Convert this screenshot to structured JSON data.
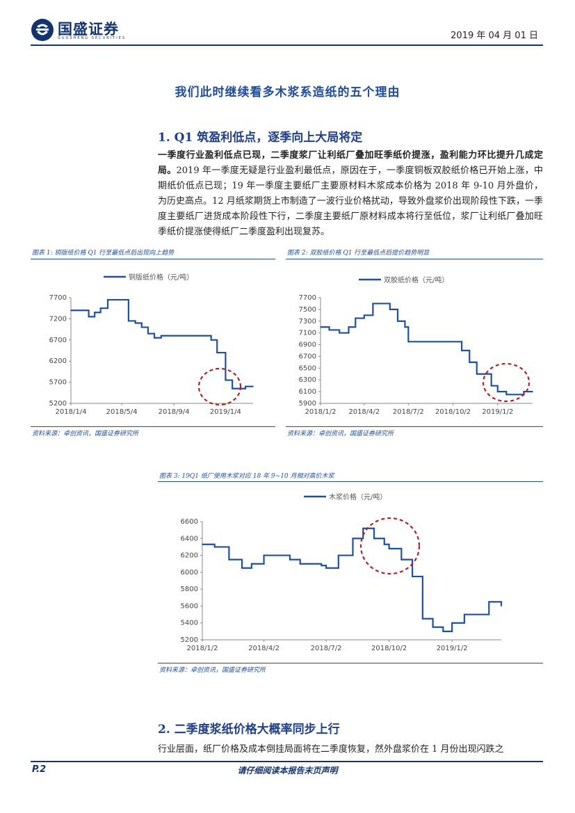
{
  "header": {
    "logo_text": "国盛证券",
    "logo_sub": "GUOSHENG SECURITIES",
    "date": "2019 年 04 月 01 日"
  },
  "main_title": "我们此时继续看多木浆系造纸的五个理由",
  "section1": {
    "title": "1. Q1 筑盈利低点，逐季向上大局将定",
    "bold_lead": "一季度行业盈利低点已现，二季度浆厂让利纸厂叠加旺季纸价提涨，盈利能力环比提升几成定局。",
    "body": "2019 年一季度无疑是行业盈利最低点，原因在于，一季度铜板双胶纸价格已开始上涨，中期纸价低点已现；19 年一季度主要纸厂主要原材料木浆成本价格为 2018 年 9-10 月外盘价，为历史高点。12 月纸浆期货上市制造了一波行业价格扰动，导致外盘浆价出现阶段性下跌，一季度主要纸厂进货成本阶段性下行，二季度主要纸厂原材料成本将行至低位，浆厂让利纸厂叠加旺季纸价提涨使得纸厂二季度盈利出现复苏。"
  },
  "figures": {
    "fig1": {
      "caption": "图表 1:  铜版纸价格 Q1 行至最低点后出现向上趋势",
      "source": "资料来源：卓创资讯，国盛证券研究所"
    },
    "fig2": {
      "caption": "图表 2:  双胶纸价格 Q1 行至最低点后提价趋势明显",
      "source": "资料来源：卓创资讯，国盛证券研究所"
    },
    "fig3": {
      "caption": "图表 3:  19Q1 纸厂使用木浆对应 18 年 9~10 月相对高价木浆",
      "source": "资料来源：卓创资讯，国盛证券研究所"
    }
  },
  "section2": {
    "title": "2. 二季度浆纸价格大概率同步上行",
    "body": "行业层面，纸厂价格及成本倒挂局面将在二季度恢复，然外盘浆价在 1 月份出现闪跌之"
  },
  "footer": {
    "page": "P.2",
    "disclaimer": "请仔细阅读本报告末页声明"
  },
  "colors": {
    "brand": "#14336e",
    "line": "#1f4fa0",
    "highlight_circle": "#b22222"
  },
  "chart_data": [
    {
      "type": "line",
      "series": [
        {
          "name": "铜版纸价格（元/吨）",
          "x": [
            "2018/1/4",
            "2018/2/1",
            "2018/2/15",
            "2018/3/1",
            "2018/3/15",
            "2018/4/1",
            "2018/4/15",
            "2018/5/4",
            "2018/5/20",
            "2018/6/5",
            "2018/6/20",
            "2018/7/5",
            "2018/7/20",
            "2018/8/5",
            "2018/8/20",
            "2018/9/4",
            "2018/9/20",
            "2018/10/5",
            "2018/10/20",
            "2018/11/1",
            "2018/11/15",
            "2018/12/1",
            "2018/12/15",
            "2019/1/4",
            "2019/1/20",
            "2019/2/5",
            "2019/2/20",
            "2019/3/10"
          ],
          "values": [
            7400,
            7400,
            7250,
            7350,
            7450,
            7650,
            7650,
            7650,
            7150,
            7100,
            7000,
            6850,
            6750,
            6800,
            6800,
            6800,
            6800,
            6800,
            6800,
            6800,
            6800,
            6700,
            6400,
            5750,
            5550,
            5550,
            5600,
            5600
          ]
        }
      ],
      "yticks": [
        5200,
        5700,
        6200,
        6700,
        7200,
        7700
      ],
      "ylim": [
        5200,
        7700
      ],
      "xticks": [
        "2018/1/4",
        "2018/5/4",
        "2018/9/4",
        "2019/1/4"
      ],
      "legend": "top"
    },
    {
      "type": "line",
      "series": [
        {
          "name": "双胶纸价格（元/吨）",
          "x": [
            "2018/1/2",
            "2018/1/20",
            "2018/2/10",
            "2018/3/1",
            "2018/3/15",
            "2018/4/2",
            "2018/4/20",
            "2018/5/10",
            "2018/5/25",
            "2018/6/10",
            "2018/6/25",
            "2018/7/2",
            "2018/7/20",
            "2018/8/10",
            "2018/8/25",
            "2018/9/10",
            "2018/9/25",
            "2018/10/2",
            "2018/10/20",
            "2018/11/5",
            "2018/11/20",
            "2018/12/5",
            "2018/12/20",
            "2019/1/2",
            "2019/1/20",
            "2019/2/10",
            "2019/2/25",
            "2019/3/15"
          ],
          "values": [
            7200,
            7150,
            7100,
            7200,
            7350,
            7400,
            7600,
            7600,
            7500,
            7300,
            7200,
            6950,
            6950,
            6950,
            6950,
            6950,
            6950,
            6950,
            6800,
            6600,
            6400,
            6400,
            6200,
            6100,
            6050,
            6050,
            6100,
            6100
          ]
        }
      ],
      "yticks": [
        5900,
        6100,
        6300,
        6500,
        6700,
        6900,
        7100,
        7300,
        7500,
        7700
      ],
      "ylim": [
        5900,
        7700
      ],
      "xticks": [
        "2018/1/2",
        "2018/4/2",
        "2018/7/2",
        "2018/10/2",
        "2019/1/2"
      ],
      "legend": "top"
    },
    {
      "type": "line",
      "series": [
        {
          "name": "木浆价格（元/吨）",
          "x": [
            "2018/1/2",
            "2018/1/20",
            "2018/2/10",
            "2018/3/1",
            "2018/3/15",
            "2018/4/2",
            "2018/4/20",
            "2018/5/10",
            "2018/5/25",
            "2018/6/10",
            "2018/6/25",
            "2018/7/2",
            "2018/7/20",
            "2018/8/10",
            "2018/8/25",
            "2018/9/10",
            "2018/9/25",
            "2018/10/2",
            "2018/10/20",
            "2018/11/5",
            "2018/11/20",
            "2018/12/5",
            "2018/12/20",
            "2019/1/2",
            "2019/1/20",
            "2019/2/10",
            "2019/2/25",
            "2019/3/15"
          ],
          "values": [
            6330,
            6300,
            6150,
            6050,
            6100,
            6200,
            6200,
            6150,
            6100,
            6100,
            6080,
            6050,
            6200,
            6400,
            6520,
            6400,
            6330,
            6280,
            6150,
            5950,
            5450,
            5350,
            5300,
            5400,
            5500,
            5500,
            5650,
            5600
          ]
        }
      ],
      "yticks": [
        5200,
        5400,
        5600,
        5800,
        6000,
        6200,
        6400,
        6600
      ],
      "ylim": [
        5200,
        6600
      ],
      "xticks": [
        "2018/1/2",
        "2018/4/2",
        "2018/7/2",
        "2018/10/2",
        "2019/1/2"
      ],
      "legend": "top"
    }
  ]
}
